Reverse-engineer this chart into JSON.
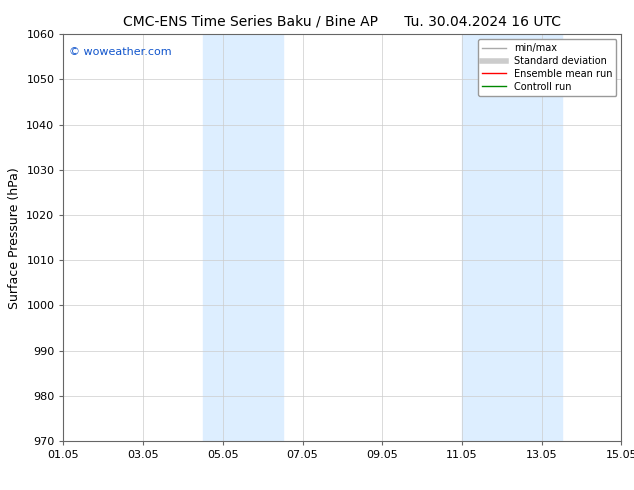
{
  "title_left": "CMC-ENS Time Series Baku / Bine AP",
  "title_right": "Tu. 30.04.2024 16 UTC",
  "ylabel": "Surface Pressure (hPa)",
  "ylim": [
    970,
    1060
  ],
  "yticks": [
    970,
    980,
    990,
    1000,
    1010,
    1020,
    1030,
    1040,
    1050,
    1060
  ],
  "xlabel_ticks": [
    "01.05",
    "03.05",
    "05.05",
    "07.05",
    "09.05",
    "11.05",
    "13.05",
    "15.05"
  ],
  "x_tick_positions": [
    0,
    2,
    4,
    6,
    8,
    10,
    12,
    14
  ],
  "xlim": [
    0,
    14
  ],
  "shaded_bands": [
    {
      "x_start": 3.5,
      "x_end": 5.5
    },
    {
      "x_start": 10.0,
      "x_end": 12.5
    }
  ],
  "shade_color": "#ddeeff",
  "watermark_text": "© woweather.com",
  "watermark_color": "#1155cc",
  "legend_items": [
    {
      "label": "min/max",
      "color": "#aaaaaa",
      "lw": 1
    },
    {
      "label": "Standard deviation",
      "color": "#cccccc",
      "lw": 4
    },
    {
      "label": "Ensemble mean run",
      "color": "#ff0000",
      "lw": 1
    },
    {
      "label": "Controll run",
      "color": "#008800",
      "lw": 1
    }
  ],
  "bg_color": "#ffffff",
  "grid_color": "#cccccc",
  "title_fontsize": 10,
  "tick_fontsize": 8,
  "ylabel_fontsize": 9,
  "watermark_fontsize": 8,
  "legend_fontsize": 7
}
